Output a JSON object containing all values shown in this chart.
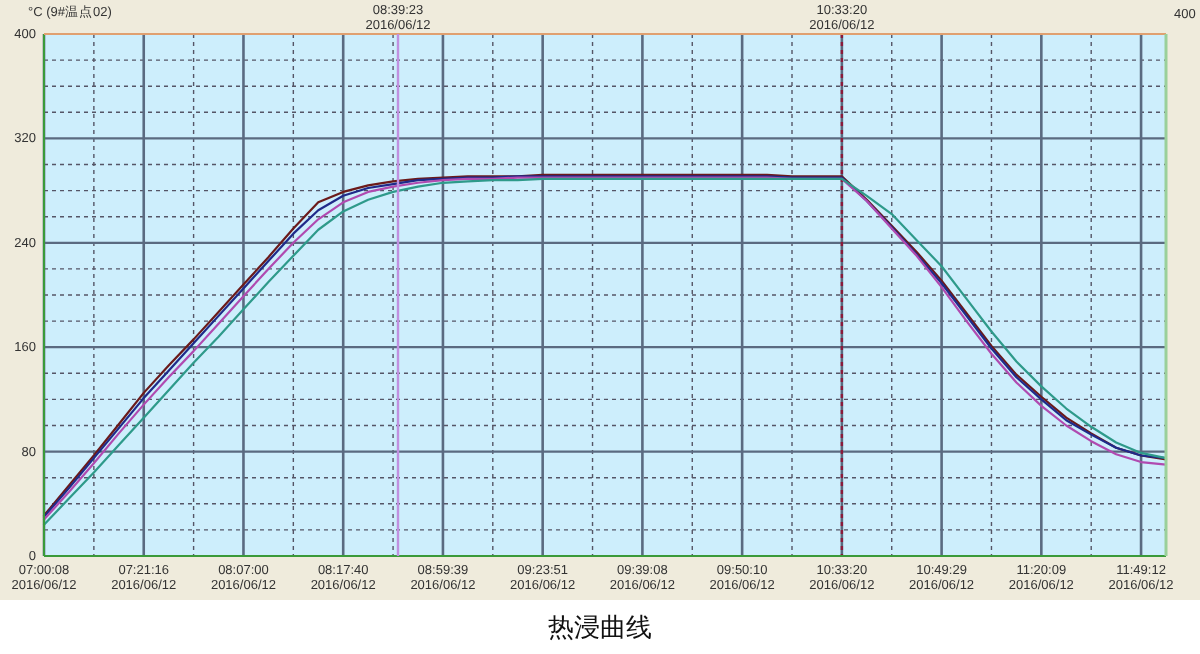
{
  "chart_data": {
    "type": "line",
    "title": "热浸曲线",
    "ylabel": "°C (9#温点02)",
    "categories": [
      "07:00:08\n2016/06/12",
      null,
      null,
      null,
      "07:21:16\n2016/06/12",
      null,
      null,
      null,
      "08:07:00\n2016/06/12",
      null,
      null,
      null,
      "08:17:40\n2016/06/12",
      null,
      null,
      null,
      "08:59:39\n2016/06/12",
      null,
      null,
      null,
      "09:23:51\n2016/06/12",
      null,
      null,
      null,
      "09:39:08\n2016/06/12",
      null,
      null,
      null,
      "09:50:10\n2016/06/12",
      null,
      null,
      null,
      "10:33:20\n2016/06/12",
      null,
      null,
      null,
      "10:49:29\n2016/06/12",
      null,
      null,
      null,
      "11:20:09\n2016/06/12",
      null,
      null,
      null,
      "11:49:12\n2016/06/12",
      null
    ],
    "series": [
      {
        "color": "#6b1a1a",
        "values": [
          31,
          54,
          77,
          101,
          125,
          146,
          166,
          187,
          208,
          229,
          251,
          271,
          279,
          284,
          287,
          289,
          290,
          291,
          291,
          291,
          292,
          292,
          292,
          292,
          292,
          292,
          292,
          292,
          292,
          292,
          291,
          291,
          291,
          273,
          253,
          233,
          211,
          186,
          161,
          139,
          122,
          106,
          94,
          83,
          77,
          74
        ]
      },
      {
        "color": "#1f2a8a",
        "values": [
          30,
          52,
          75,
          98,
          121,
          142,
          163,
          184,
          205,
          226,
          247,
          265,
          276,
          282,
          285,
          288,
          289,
          290,
          290,
          291,
          291,
          291,
          291,
          291,
          291,
          291,
          291,
          291,
          291,
          291,
          290,
          290,
          290,
          272,
          252,
          231,
          209,
          184,
          159,
          137,
          120,
          104,
          93,
          83,
          77,
          75
        ]
      },
      {
        "color": "#b04ab0",
        "values": [
          28,
          49,
          71,
          94,
          116,
          137,
          157,
          178,
          199,
          220,
          240,
          258,
          271,
          279,
          283,
          286,
          288,
          289,
          289,
          290,
          290,
          290,
          290,
          290,
          290,
          290,
          290,
          290,
          290,
          290,
          289,
          289,
          289,
          272,
          251,
          230,
          206,
          180,
          155,
          133,
          115,
          100,
          88,
          78,
          72,
          70
        ]
      },
      {
        "color": "#2e9a8a",
        "values": [
          24,
          44,
          64,
          85,
          106,
          127,
          148,
          168,
          189,
          210,
          230,
          250,
          264,
          273,
          279,
          283,
          286,
          287,
          288,
          288,
          289,
          289,
          289,
          289,
          289,
          289,
          289,
          289,
          289,
          289,
          289,
          289,
          289,
          276,
          262,
          242,
          222,
          197,
          172,
          149,
          130,
          113,
          99,
          87,
          79,
          75
        ]
      }
    ],
    "ylim": [
      0,
      400
    ],
    "yticks": [
      0,
      80,
      160,
      240,
      320,
      400
    ],
    "ref_lines": [
      {
        "axis": "x",
        "value": "10:33:20\n2016/06/12",
        "color": "#8b1a3a",
        "line_style": "dotted"
      }
    ],
    "annotations": [
      "08:39:23\n2016/06/12",
      "10:33:20\n2016/06/12",
      "400"
    ],
    "grid": true,
    "marker": "none",
    "line_style": "solid"
  }
}
